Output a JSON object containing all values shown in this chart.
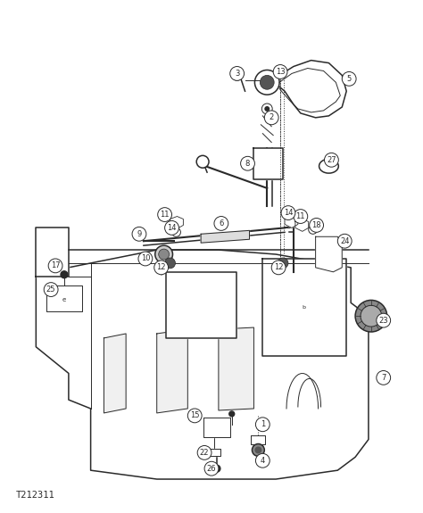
{
  "bg_color": "#ffffff",
  "line_color": "#2a2a2a",
  "title": "T212311",
  "title_fontsize": 7.5,
  "callout_fontsize": 6.0,
  "lw_main": 1.1,
  "lw_thin": 0.7,
  "lw_thick": 1.5
}
